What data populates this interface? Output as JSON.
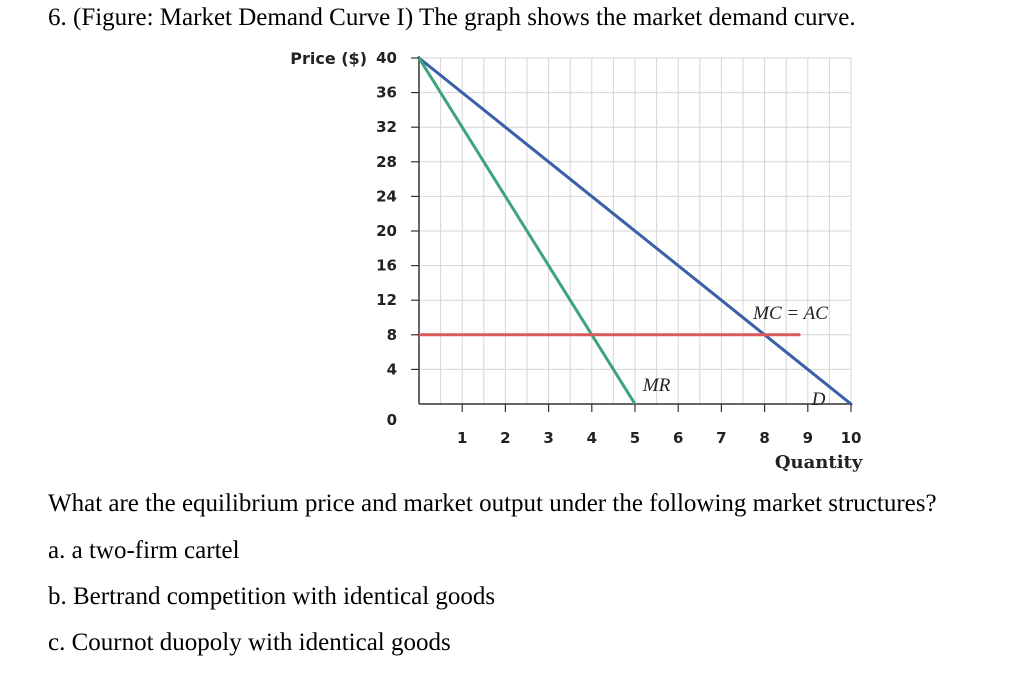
{
  "question": {
    "title": "6. (Figure: Market Demand Curve I) The graph shows the market demand curve.",
    "prompt": "What are the equilibrium price and market output under the following market structures?",
    "options": [
      "a. a two-firm cartel",
      "b. Bertrand competition with identical goods",
      "c. Cournot duopoly with identical goods"
    ]
  },
  "chart_data": {
    "type": "line",
    "ylabel": "Price ($)",
    "xlabel": "Quantity",
    "xlim": [
      0,
      10
    ],
    "ylim": [
      0,
      40
    ],
    "x_ticks": [
      1,
      2,
      3,
      4,
      5,
      6,
      7,
      8,
      9,
      10
    ],
    "y_ticks": [
      4,
      8,
      12,
      16,
      20,
      24,
      28,
      32,
      36,
      40
    ],
    "origin_label": "0",
    "grid": true,
    "series": [
      {
        "name": "D",
        "color": "#3a5ea8",
        "x": [
          0,
          10
        ],
        "y": [
          40,
          0
        ]
      },
      {
        "name": "MR",
        "color": "#3aa57a",
        "x": [
          0,
          5
        ],
        "y": [
          40,
          0
        ]
      },
      {
        "name": "MC = AC",
        "color": "#d85a5a",
        "x": [
          0,
          8.8
        ],
        "y": [
          8,
          8
        ]
      }
    ],
    "annotations": [
      {
        "text": "MC = AC",
        "x": 8.6,
        "y": 10.5
      },
      {
        "text": "MR",
        "x": 5.5,
        "y": 2.2
      },
      {
        "text": "D",
        "x": 9.25,
        "y": 0.6
      }
    ]
  }
}
